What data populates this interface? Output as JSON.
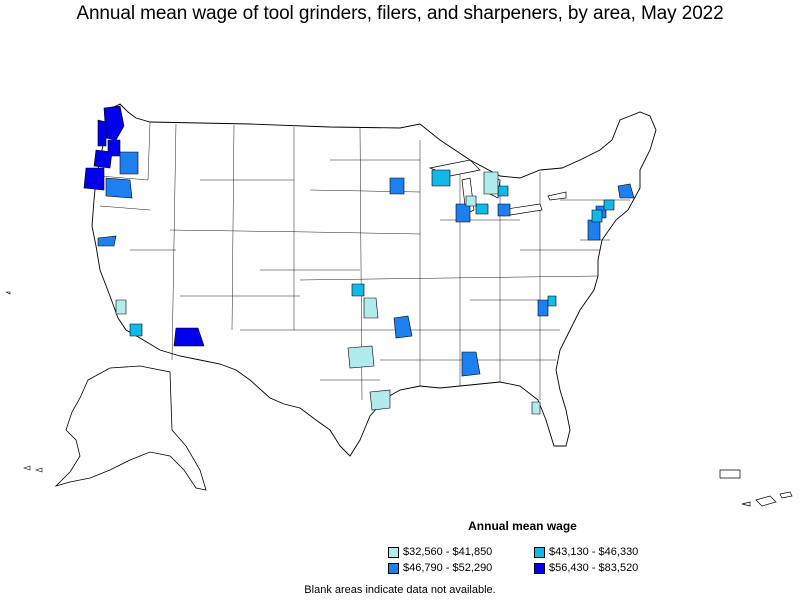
{
  "title": "Annual mean wage of tool grinders, filers, and sharpeners, by area, May 2022",
  "legend": {
    "title": "Annual mean wage",
    "items": [
      {
        "label": "$32,560 - $41,850",
        "color": "#b2ebee"
      },
      {
        "label": "$43,130 - $46,330",
        "color": "#12b9e8"
      },
      {
        "label": "$46,790 - $52,290",
        "color": "#1e7ff0"
      },
      {
        "label": "$56,430 - $83,520",
        "color": "#0000ee"
      }
    ]
  },
  "footnote": "Blank areas indicate data not available.",
  "colors": {
    "land": "#ffffff",
    "border": "#000000",
    "no_data": "#ffffff"
  }
}
